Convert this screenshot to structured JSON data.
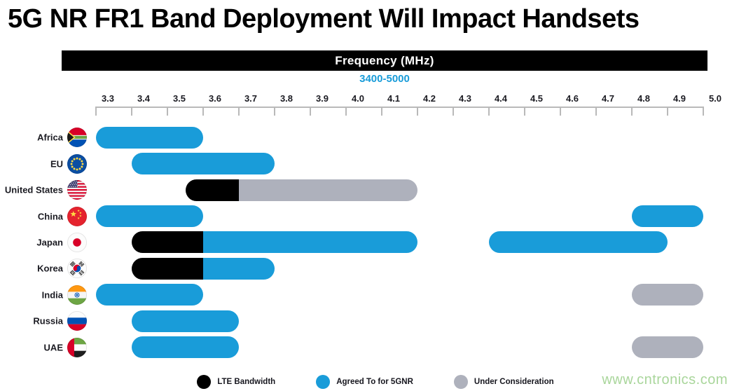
{
  "title": "5G NR FR1 Band Deployment Will Impact Handsets",
  "watermark": {
    "text": "www.cntronics.com",
    "color": "#a9d69b"
  },
  "chart_data": {
    "type": "bar",
    "orientation": "horizontal-range",
    "title": "5G NR FR1 Band Deployment Will Impact Handsets",
    "axis": {
      "label": "Frequency (MHz)",
      "sub_range": "3400-5000",
      "min": 3.3,
      "max": 5.0,
      "tick_step": 0.1,
      "ticks": [
        "3.3",
        "3.4",
        "3.5",
        "3.6",
        "3.7",
        "3.8",
        "3.9",
        "4.0",
        "4.1",
        "4.2",
        "4.3",
        "4.4",
        "4.5",
        "4.6",
        "4.7",
        "4.8",
        "4.9",
        "5.0"
      ]
    },
    "grid": false,
    "legend_position": "bottom",
    "legend": [
      {
        "id": "lte",
        "label": "LTE Bandwidth",
        "color": "#000000"
      },
      {
        "id": "agreed",
        "label": "Agreed To for 5GNR",
        "color": "#199CD9"
      },
      {
        "id": "consideration",
        "label": "Under Consideration",
        "color": "#AEB1BC"
      }
    ],
    "rows": [
      {
        "label": "Africa",
        "flag": "south-africa",
        "segments": [
          {
            "start": 3.3,
            "end": 3.6,
            "type": "agreed"
          }
        ]
      },
      {
        "label": "EU",
        "flag": "european-union",
        "segments": [
          {
            "start": 3.4,
            "end": 3.8,
            "type": "agreed"
          }
        ]
      },
      {
        "label": "United States",
        "flag": "united-states",
        "segments": [
          {
            "start": 3.55,
            "end": 3.7,
            "type": "lte"
          },
          {
            "start": 3.7,
            "end": 4.2,
            "type": "consideration"
          }
        ]
      },
      {
        "label": "China",
        "flag": "china",
        "segments": [
          {
            "start": 3.3,
            "end": 3.6,
            "type": "agreed"
          },
          {
            "start": 4.8,
            "end": 5.0,
            "type": "agreed"
          }
        ]
      },
      {
        "label": "Japan",
        "flag": "japan",
        "segments": [
          {
            "start": 3.4,
            "end": 3.6,
            "type": "lte"
          },
          {
            "start": 3.6,
            "end": 4.2,
            "type": "agreed"
          },
          {
            "start": 4.4,
            "end": 4.9,
            "type": "agreed"
          }
        ]
      },
      {
        "label": "Korea",
        "flag": "south-korea",
        "segments": [
          {
            "start": 3.4,
            "end": 3.6,
            "type": "lte"
          },
          {
            "start": 3.6,
            "end": 3.8,
            "type": "agreed"
          }
        ]
      },
      {
        "label": "India",
        "flag": "india",
        "segments": [
          {
            "start": 3.3,
            "end": 3.6,
            "type": "agreed"
          },
          {
            "start": 4.8,
            "end": 5.0,
            "type": "consideration"
          }
        ]
      },
      {
        "label": "Russia",
        "flag": "russia",
        "segments": [
          {
            "start": 3.4,
            "end": 3.7,
            "type": "agreed"
          }
        ]
      },
      {
        "label": "UAE",
        "flag": "united-arab-emirates",
        "segments": [
          {
            "start": 3.4,
            "end": 3.7,
            "type": "agreed"
          },
          {
            "start": 4.8,
            "end": 5.0,
            "type": "consideration"
          }
        ]
      }
    ]
  }
}
